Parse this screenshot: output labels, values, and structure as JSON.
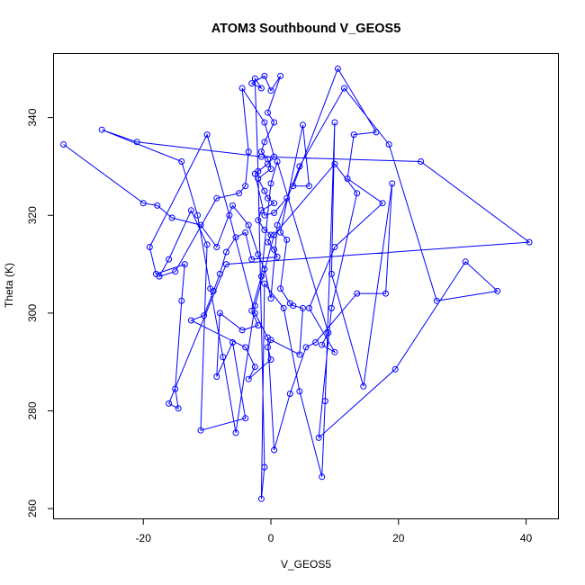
{
  "chart_data": {
    "type": "scatter",
    "title": "ATOM3 Southbound V_GEOS5",
    "xlabel": "V_GEOS5",
    "ylabel": "Theta (K)",
    "xlim": [
      -34,
      45
    ],
    "ylim": [
      258,
      353
    ],
    "xticks": [
      -20,
      0,
      20,
      40
    ],
    "yticks": [
      260,
      280,
      300,
      320,
      340
    ],
    "series_color": "#0000ff",
    "connected": true,
    "series": [
      {
        "values": [
          {
            "x": -32.5,
            "y": 334.5
          },
          {
            "x": -20.0,
            "y": 322.5
          },
          {
            "x": -17.8,
            "y": 322.0
          },
          {
            "x": -15.5,
            "y": 319.5
          },
          {
            "x": -11.0,
            "y": 318.0
          },
          {
            "x": -8.5,
            "y": 313.5
          },
          {
            "x": -6.0,
            "y": 322.0
          },
          {
            "x": -3.5,
            "y": 318.0
          },
          {
            "x": -2.0,
            "y": 312.0
          },
          {
            "x": -1.0,
            "y": 309.0
          },
          {
            "x": 0.0,
            "y": 303.0
          },
          {
            "x": 1.0,
            "y": 318.0
          },
          {
            "x": 4.5,
            "y": 330.0
          },
          {
            "x": 11.5,
            "y": 346.0
          },
          {
            "x": 18.5,
            "y": 334.5
          },
          {
            "x": 26.0,
            "y": 302.5
          },
          {
            "x": 35.5,
            "y": 304.5
          },
          {
            "x": 30.5,
            "y": 310.5
          },
          {
            "x": 19.5,
            "y": 288.5
          },
          {
            "x": 7.5,
            "y": 274.5
          },
          {
            "x": 9.5,
            "y": 301.0
          },
          {
            "x": 13.5,
            "y": 324.5
          },
          {
            "x": 10.0,
            "y": 330.5
          },
          {
            "x": 0.5,
            "y": 316.0
          },
          {
            "x": -2.5,
            "y": 301.5
          },
          {
            "x": -5.5,
            "y": 275.5
          },
          {
            "x": -7.5,
            "y": 291.0
          },
          {
            "x": -9.5,
            "y": 305.0
          },
          {
            "x": -11.5,
            "y": 320.0
          },
          {
            "x": -14.0,
            "y": 331.0
          },
          {
            "x": -26.5,
            "y": 337.5
          },
          {
            "x": -21.0,
            "y": 335.0
          },
          {
            "x": -1.5,
            "y": 332.0
          },
          {
            "x": 23.5,
            "y": 331.0
          },
          {
            "x": 40.5,
            "y": 314.5
          },
          {
            "x": -7.0,
            "y": 310.0
          },
          {
            "x": -16.0,
            "y": 281.5
          },
          {
            "x": -14.5,
            "y": 280.5
          },
          {
            "x": -15.0,
            "y": 284.5
          },
          {
            "x": -14.0,
            "y": 302.5
          },
          {
            "x": -13.5,
            "y": 310.0
          },
          {
            "x": -18.0,
            "y": 308.0
          },
          {
            "x": -19.0,
            "y": 313.5
          },
          {
            "x": -10.0,
            "y": 336.5
          },
          {
            "x": -6.5,
            "y": 320.0
          },
          {
            "x": -2.5,
            "y": 300.0
          },
          {
            "x": -0.5,
            "y": 295.0
          },
          {
            "x": 0.5,
            "y": 272.0
          },
          {
            "x": 3.0,
            "y": 283.5
          },
          {
            "x": 5.5,
            "y": 293.0
          },
          {
            "x": 7.0,
            "y": 294.0
          },
          {
            "x": 13.5,
            "y": 304.0
          },
          {
            "x": 18.0,
            "y": 304.0
          },
          {
            "x": 19.0,
            "y": 326.5
          },
          {
            "x": 14.5,
            "y": 285.0
          },
          {
            "x": 9.5,
            "y": 308.0
          },
          {
            "x": 10.0,
            "y": 339.0
          },
          {
            "x": 8.5,
            "y": 282.0
          },
          {
            "x": 8.0,
            "y": 266.5
          },
          {
            "x": 4.5,
            "y": 284.0
          },
          {
            "x": 2.0,
            "y": 301.0
          },
          {
            "x": -1.0,
            "y": 306.0
          },
          {
            "x": -1.5,
            "y": 262.0
          },
          {
            "x": -1.0,
            "y": 268.5
          },
          {
            "x": -2.0,
            "y": 329.0
          },
          {
            "x": -2.5,
            "y": 348.0
          },
          {
            "x": -1.5,
            "y": 346.0
          },
          {
            "x": -3.0,
            "y": 347.0
          },
          {
            "x": -1.0,
            "y": 348.5
          },
          {
            "x": 0.0,
            "y": 345.5
          },
          {
            "x": 1.5,
            "y": 348.5
          },
          {
            "x": -0.5,
            "y": 341.0
          },
          {
            "x": 0.5,
            "y": 339.0
          },
          {
            "x": -1.0,
            "y": 335.0
          },
          {
            "x": -1.5,
            "y": 333.0
          },
          {
            "x": -0.5,
            "y": 331.5
          },
          {
            "x": 0.0,
            "y": 329.5
          },
          {
            "x": -2.0,
            "y": 327.5
          },
          {
            "x": -1.0,
            "y": 325.0
          },
          {
            "x": -0.5,
            "y": 323.5
          },
          {
            "x": 0.5,
            "y": 322.5
          },
          {
            "x": -1.5,
            "y": 321.0
          },
          {
            "x": -2.0,
            "y": 319.0
          },
          {
            "x": -1.0,
            "y": 317.0
          },
          {
            "x": 0.0,
            "y": 316.0
          },
          {
            "x": -0.5,
            "y": 314.5
          },
          {
            "x": 0.5,
            "y": 313.0
          },
          {
            "x": 1.0,
            "y": 311.5
          },
          {
            "x": -3.0,
            "y": 311.0
          },
          {
            "x": -4.0,
            "y": 316.5
          },
          {
            "x": -5.5,
            "y": 315.5
          },
          {
            "x": -7.0,
            "y": 312.5
          },
          {
            "x": -8.0,
            "y": 308.0
          },
          {
            "x": -9.0,
            "y": 304.5
          },
          {
            "x": -10.5,
            "y": 299.5
          },
          {
            "x": -12.5,
            "y": 298.5
          },
          {
            "x": -4.0,
            "y": 293.0
          },
          {
            "x": -2.5,
            "y": 289.0
          },
          {
            "x": -3.5,
            "y": 286.5
          },
          {
            "x": 0.0,
            "y": 290.5
          },
          {
            "x": -0.5,
            "y": 293.0
          },
          {
            "x": 0.0,
            "y": 294.5
          },
          {
            "x": 4.5,
            "y": 291.5
          },
          {
            "x": 5.0,
            "y": 301.0
          },
          {
            "x": 3.5,
            "y": 301.5
          },
          {
            "x": 3.0,
            "y": 302.0
          },
          {
            "x": 1.5,
            "y": 305.0
          },
          {
            "x": 2.5,
            "y": 315.0
          },
          {
            "x": 1.5,
            "y": 316.5
          },
          {
            "x": 5.0,
            "y": 338.5
          },
          {
            "x": 6.0,
            "y": 326.0
          },
          {
            "x": 3.5,
            "y": 326.0
          },
          {
            "x": 10.5,
            "y": 350.0
          },
          {
            "x": 16.5,
            "y": 337.0
          },
          {
            "x": 13.0,
            "y": 336.5
          },
          {
            "x": 12.0,
            "y": 327.5
          },
          {
            "x": 17.5,
            "y": 322.5
          },
          {
            "x": 10.0,
            "y": 313.5
          },
          {
            "x": 6.0,
            "y": 301.0
          },
          {
            "x": 10.0,
            "y": 292.0
          },
          {
            "x": 8.0,
            "y": 293.5
          },
          {
            "x": 9.0,
            "y": 296.0
          },
          {
            "x": 1.0,
            "y": 331.0
          },
          {
            "x": 0.0,
            "y": 326.5
          },
          {
            "x": -1.5,
            "y": 307.5
          },
          {
            "x": -3.0,
            "y": 300.5
          },
          {
            "x": -2.0,
            "y": 297.5
          },
          {
            "x": -4.5,
            "y": 296.5
          },
          {
            "x": -8.0,
            "y": 300.0
          },
          {
            "x": -8.5,
            "y": 287.0
          },
          {
            "x": -6.0,
            "y": 294.0
          },
          {
            "x": -4.0,
            "y": 278.5
          },
          {
            "x": -11.0,
            "y": 276.0
          },
          {
            "x": -10.0,
            "y": 314.0
          },
          {
            "x": -12.5,
            "y": 321.0
          },
          {
            "x": -16.0,
            "y": 311.0
          },
          {
            "x": -17.5,
            "y": 307.5
          },
          {
            "x": -15.0,
            "y": 308.5
          },
          {
            "x": -8.5,
            "y": 323.5
          },
          {
            "x": -5.0,
            "y": 324.5
          },
          {
            "x": -4.0,
            "y": 326.0
          },
          {
            "x": -3.5,
            "y": 333.0
          },
          {
            "x": -4.5,
            "y": 346.0
          },
          {
            "x": -1.0,
            "y": 339.0
          },
          {
            "x": 0.5,
            "y": 332.0
          },
          {
            "x": -0.5,
            "y": 330.5
          },
          {
            "x": -2.5,
            "y": 328.5
          },
          {
            "x": -1.0,
            "y": 320.0
          },
          {
            "x": 0.5,
            "y": 320.5
          },
          {
            "x": 2.5,
            "y": 323.5
          }
        ]
      }
    ]
  }
}
